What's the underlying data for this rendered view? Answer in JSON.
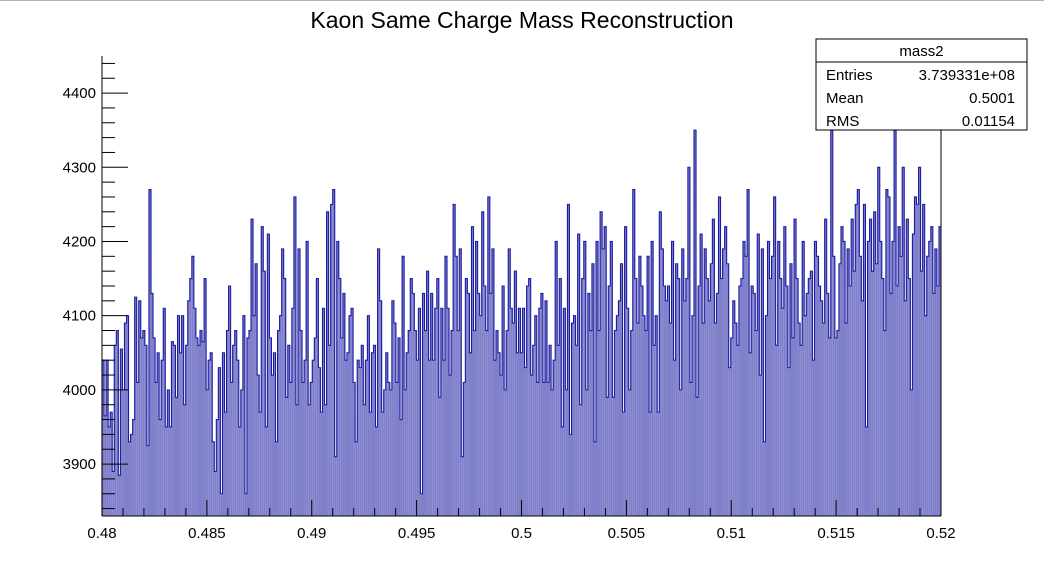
{
  "chart_data": {
    "type": "bar",
    "title": "Kaon Same Charge Mass Reconstruction",
    "xlabel": "",
    "ylabel": "",
    "xlim": [
      0.48,
      0.52
    ],
    "ylim": [
      3830,
      4450
    ],
    "x_ticks": [
      0.48,
      0.485,
      0.49,
      0.495,
      0.5,
      0.505,
      0.51,
      0.515,
      0.52
    ],
    "x_tick_labels": [
      "0.48",
      "0.485",
      "0.49",
      "0.495",
      "0.5",
      "0.505",
      "0.51",
      "0.515",
      "0.52"
    ],
    "y_ticks": [
      3900,
      4000,
      4100,
      4200,
      4300,
      4400
    ],
    "y_tick_labels": [
      "3900",
      "4000",
      "4100",
      "4200",
      "4300",
      "4400"
    ],
    "bin_low": 0.48,
    "bin_high": 0.52,
    "values": [
      4040,
      3965,
      4040,
      3950,
      3970,
      3890,
      4060,
      4080,
      3885,
      4055,
      4000,
      4090,
      4100,
      3930,
      3940,
      3960,
      4125,
      4010,
      4120,
      4070,
      4080,
      4060,
      3925,
      4270,
      4130,
      4070,
      4010,
      4050,
      3960,
      4040,
      4110,
      3950,
      4000,
      3950,
      4065,
      4060,
      3990,
      4100,
      4050,
      4100,
      3980,
      4060,
      4120,
      4150,
      4180,
      4110,
      4070,
      4060,
      4080,
      4065,
      4150,
      4000,
      4040,
      4050,
      3930,
      3890,
      3960,
      4030,
      3860,
      4050,
      3970,
      4080,
      4140,
      4010,
      4060,
      4080,
      4040,
      3950,
      4000,
      4100,
      3860,
      4070,
      4080,
      4230,
      4100,
      4170,
      4020,
      3970,
      4220,
      4160,
      3950,
      4210,
      4070,
      4020,
      4050,
      3930,
      4080,
      4100,
      4190,
      4150,
      3990,
      4060,
      4010,
      4110,
      4260,
      3980,
      4190,
      4080,
      4010,
      4040,
      4200,
      3980,
      4010,
      4040,
      4070,
      4150,
      4030,
      3970,
      4110,
      3980,
      4240,
      4060,
      4250,
      4270,
      3910,
      4200,
      4150,
      4070,
      4130,
      4040,
      4050,
      4100,
      4110,
      4010,
      3930,
      4040,
      4030,
      4060,
      3980,
      4040,
      4100,
      3970,
      4050,
      4060,
      3950,
      4190,
      4120,
      3970,
      4000,
      4050,
      4010,
      4000,
      4120,
      4090,
      4010,
      4070,
      3960,
      4180,
      4000,
      4050,
      4080,
      4150,
      4130,
      4080,
      4040,
      4110,
      3860,
      4130,
      4080,
      4160,
      4040,
      4130,
      4040,
      4110,
      4150,
      3990,
      4110,
      4040,
      4180,
      4110,
      4020,
      4080,
      4250,
      4180,
      4080,
      4190,
      3910,
      4010,
      4150,
      4130,
      4050,
      4220,
      4080,
      4200,
      4130,
      4100,
      4240,
      4140,
      4080,
      4260,
      4130,
      4190,
      4040,
      4080,
      4050,
      4020,
      4140,
      4000,
      4080,
      4190,
      4110,
      4090,
      4160,
      4050,
      4110,
      4050,
      4110,
      4030,
      4140,
      4150,
      4020,
      4060,
      4100,
      4010,
      4110,
      4130,
      4010,
      4120,
      4010,
      4060,
      4000,
      4040,
      4200,
      4060,
      4150,
      3950,
      4110,
      4000,
      4250,
      3940,
      4090,
      4100,
      4060,
      4210,
      3980,
      4150,
      4200,
      4000,
      4130,
      4080,
      4170,
      3930,
      4200,
      4080,
      4240,
      4190,
      4220,
      3990,
      4140,
      4200,
      3990,
      4080,
      4100,
      4120,
      4170,
      3970,
      4220,
      4110,
      4000,
      4080,
      4270,
      4150,
      4090,
      4180,
      4140,
      4100,
      4080,
      4180,
      3970,
      4200,
      4060,
      4100,
      3970,
      4240,
      4190,
      4140,
      4120,
      4140,
      4090,
      4200,
      4040,
      4170,
      4150,
      4000,
      4190,
      4120,
      4150,
      4300,
      4010,
      4100,
      4350,
      3990,
      4140,
      4210,
      4090,
      4190,
      4150,
      4120,
      4170,
      4230,
      4090,
      4130,
      4260,
      4150,
      4190,
      4220,
      4170,
      4030,
      4070,
      4120,
      4090,
      4060,
      4140,
      4150,
      4200,
      4180,
      4270,
      4050,
      4140,
      4130,
      4080,
      4210,
      4020,
      4190,
      3930,
      4100,
      4200,
      4150,
      4180,
      4260,
      4060,
      4200,
      4150,
      4110,
      4220,
      4140,
      4030,
      4170,
      4070,
      4230,
      4150,
      4090,
      4060,
      4200,
      4100,
      4130,
      4150,
      4160,
      4040,
      4200,
      4180,
      4140,
      4120,
      4090,
      4230,
      4130,
      4070,
      4350,
      4180,
      4070,
      4080,
      4170,
      4220,
      4200,
      4090,
      4190,
      4140,
      4230,
      4160,
      4250,
      4270,
      4180,
      4120,
      4250,
      3950,
      4200,
      4230,
      4160,
      4240,
      4170,
      4300,
      4200,
      4150,
      4080,
      4270,
      4260,
      4130,
      4200,
      4350,
      4140,
      4220,
      4180,
      4300,
      4120,
      4230,
      4150,
      4000,
      4210,
      4260,
      4250,
      4300,
      4160,
      4250,
      4100,
      4180,
      4200,
      4220,
      4130,
      4190,
      4140,
      4220
    ],
    "line_color": "#1c1ca0",
    "fill_color": "#7f7fca",
    "stats": {
      "name": "mass2",
      "rows": [
        {
          "label": "Entries",
          "value": "3.739331e+08"
        },
        {
          "label": "Mean",
          "value": "0.5001"
        },
        {
          "label": "RMS",
          "value": "0.01154"
        }
      ]
    }
  }
}
